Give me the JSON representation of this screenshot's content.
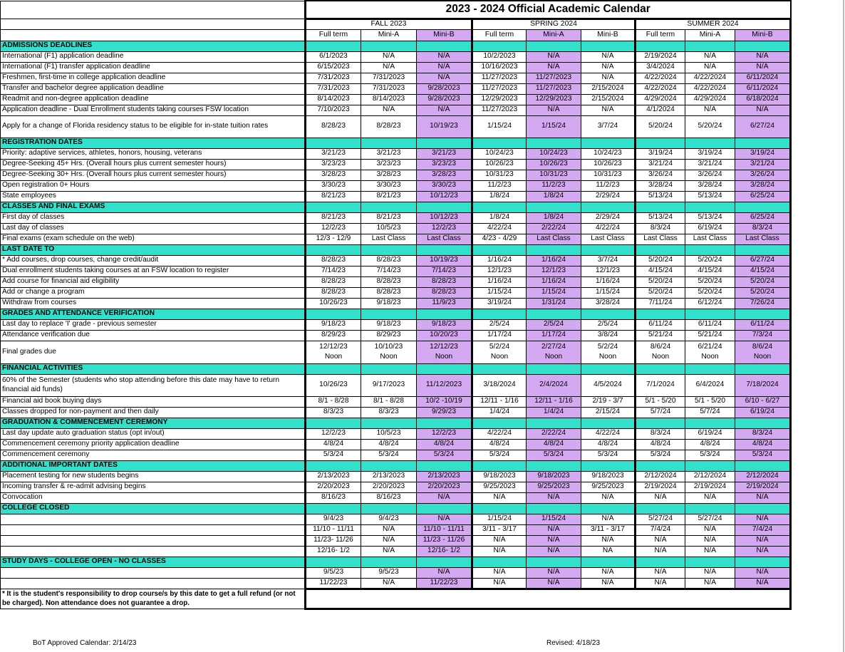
{
  "title": "2023 - 2024 Official Academic Calendar",
  "terms": [
    "FALL 2023",
    "SPRING 2024",
    "SUMMER 2024"
  ],
  "subheaders": [
    "Full term",
    "Mini-A",
    "Mini-B",
    "Full term",
    "Mini-A",
    "Mini-B",
    "Full term",
    "Mini-A",
    "Mini-B"
  ],
  "sections": [
    {
      "title": "ADMISSIONS DEADLINES",
      "rows": [
        {
          "label": "International (F1) application deadline",
          "values": [
            "6/1/2023",
            "N/A",
            "N/A",
            "10/2/2023",
            "N/A",
            "N/A",
            "2/19/2024",
            "N/A",
            "N/A"
          ]
        },
        {
          "label": "International (F1) transfer application deadline",
          "values": [
            "6/15/2023",
            "N/A",
            "N/A",
            "10/16/2023",
            "N/A",
            "N/A",
            "3/4/2024",
            "N/A",
            "N/A"
          ]
        },
        {
          "label": "Freshmen, first-time in college application deadline",
          "values": [
            "7/31/2023",
            "7/31/2023",
            "N/A",
            "11/27/2023",
            "11/27/2023",
            "N/A",
            "4/22/2024",
            "4/22/2024",
            "6/11/2024"
          ]
        },
        {
          "label": "Transfer and bachelor degree application deadline",
          "values": [
            "7/31/2023",
            "7/31/2023",
            "9/28/2023",
            "11/27/2023",
            "11/27/2023",
            "2/15/2024",
            "4/22/2024",
            "4/22/2024",
            "6/11/2024"
          ]
        },
        {
          "label": "Readmit and non-degree application deadline",
          "values": [
            "8/14/2023",
            "8/14/2023",
            "9/28/2023",
            "12/29/2023",
            "12/29/2023",
            "2/15/2024",
            "4/29/2024",
            "4/29/2024",
            "6/18/2024"
          ]
        },
        {
          "label": "Application deadline - Dual Enrollment students taking courses FSW location",
          "values": [
            "7/10/2023",
            "N/A",
            "N/A",
            "11/27/2023",
            "N/A",
            "N/A",
            "4/1/2024",
            "N/A",
            "N/A"
          ]
        },
        {
          "label": "Apply for a change of Florida residency status to be eligible for in-state tuition rates",
          "values": [
            "8/28/23",
            "8/28/23",
            "10/19/23",
            "1/15/24",
            "1/15/24",
            "3/7/24",
            "5/20/24",
            "5/20/24",
            "6/27/24"
          ],
          "tall": true
        }
      ]
    },
    {
      "title": "REGISTRATION DATES",
      "rows": [
        {
          "label": "Priority: adaptive services, athletes, honors, housing, veterans",
          "values": [
            "3/21/23",
            "3/21/23",
            "3/21/23",
            "10/24/23",
            "10/24/23",
            "10/24/23",
            "3/19/24",
            "3/19/24",
            "3/19/24"
          ]
        },
        {
          "label": "Degree-Seeking 45+ Hrs. (Overall hours plus current semester hours)",
          "values": [
            "3/23/23",
            "3/23/23",
            "3/23/23",
            "10/26/23",
            "10/26/23",
            "10/26/23",
            "3/21/24",
            "3/21/24",
            "3/21/24"
          ]
        },
        {
          "label": "Degree-Seeking 30+ Hrs. (Overall hours plus current semester hours)",
          "values": [
            "3/28/23",
            "3/28/23",
            "3/28/23",
            "10/31/23",
            "10/31/23",
            "10/31/23",
            "3/26/24",
            "3/26/24",
            "3/26/24"
          ]
        },
        {
          "label": "Open registration 0+ Hours",
          "values": [
            "3/30/23",
            "3/30/23",
            "3/30/23",
            "11/2/23",
            "11/2/23",
            "11/2/23",
            "3/28/24",
            "3/28/24",
            "3/28/24"
          ]
        },
        {
          "label": "State employees",
          "values": [
            "8/21/23",
            "8/21/23",
            "10/12/23",
            "1/8/24",
            "1/8/24",
            "2/29/24",
            "5/13/24",
            "5/13/24",
            "6/25/24"
          ]
        }
      ]
    },
    {
      "title": "CLASSES AND FINAL EXAMS",
      "rows": [
        {
          "label": "First day of classes",
          "values": [
            "8/21/23",
            "8/21/23",
            "10/12/23",
            "1/8/24",
            "1/8/24",
            "2/29/24",
            "5/13/24",
            "5/13/24",
            "6/25/24"
          ]
        },
        {
          "label": "Last day of classes",
          "values": [
            "12/2/23",
            "10/5/23",
            "12/2/23",
            "4/22/24",
            "2/22/24",
            "4/22/24",
            "8/3/24",
            "6/19/24",
            "8/3/24"
          ]
        },
        {
          "label": "Final exams (exam schedule on the web)",
          "values": [
            "12/3 - 12/9",
            "Last Class",
            "Last Class",
            "4/23 - 4/29",
            "Last Class",
            "Last Class",
            "Last Class",
            "Last Class",
            "Last Class"
          ]
        }
      ]
    },
    {
      "title": "LAST DATE TO",
      "rows": [
        {
          "label": "* Add courses, drop courses, change credit/audit",
          "values": [
            "8/28/23",
            "8/28/23",
            "10/19/23",
            "1/16/24",
            "1/16/24",
            "3/7/24",
            "5/20/24",
            "5/20/24",
            "6/27/24"
          ]
        },
        {
          "label": "Dual enrollment students taking courses at an FSW location to register",
          "values": [
            "7/14/23",
            "7/14/23",
            "7/14/23",
            "12/1/23",
            "12/1/23",
            "12/1/23",
            "4/15/24",
            "4/15/24",
            "4/15/24"
          ]
        },
        {
          "label": "Add course for financial aid eligibility",
          "values": [
            "8/28/23",
            "8/28/23",
            "8/28/23",
            "1/16/24",
            "1/16/24",
            "1/16/24",
            "5/20/24",
            "5/20/24",
            "5/20/24"
          ]
        },
        {
          "label": "Add or change a program",
          "values": [
            "8/28/23",
            "8/28/23",
            "8/28/23",
            "1/15/24",
            "1/15/24",
            "1/15/24",
            "5/20/24",
            "5/20/24",
            "5/20/24"
          ]
        },
        {
          "label": "Withdraw from courses",
          "values": [
            "10/26/23",
            "9/18/23",
            "11/9/23",
            "3/19/24",
            "1/31/24",
            "3/28/24",
            "7/11/24",
            "6/12/24",
            "7/26/24"
          ]
        }
      ]
    },
    {
      "title": "GRADES AND ATTENDANCE VERIFICATION",
      "rows": [
        {
          "label": "Last day to replace 'I' grade - previous semester",
          "values": [
            "9/18/23",
            "9/18/23",
            "9/18/23",
            "2/5/24",
            "2/5/24",
            "2/5/24",
            "6/11/24",
            "6/11/24",
            "6/11/24"
          ]
        },
        {
          "label": "Attendance verification due",
          "values": [
            "8/29/23",
            "8/29/23",
            "10/20/23",
            "1/17/24",
            "1/17/24",
            "3/8/24",
            "5/21/24",
            "5/21/24",
            "7/3/24"
          ]
        },
        {
          "label": "Final grades due",
          "values": [
            "12/12/23",
            "10/10/23",
            "12/12/23",
            "5/2/24",
            "2/27/24",
            "5/2/24",
            "8/6/24",
            "6/21/24",
            "8/6/24"
          ],
          "values2": [
            "Noon",
            "Noon",
            "Noon",
            "Noon",
            "Noon",
            "Noon",
            "Noon",
            "Noon",
            "Noon"
          ],
          "tall": true
        }
      ]
    },
    {
      "title": "FINANCIAL ACTIVITIES",
      "rows": [
        {
          "label": "60% of the Semester (students who stop attending before this date may have to return financial aid funds)",
          "values": [
            "10/26/23",
            "9/17/2023",
            "11/12/2023",
            "3/18/2024",
            "2/4/2024",
            "4/5/2024",
            "7/1/2024",
            "6/4/2024",
            "7/18/2024"
          ],
          "tall": true
        },
        {
          "label": "Financial aid book buying days",
          "values": [
            "8/1 - 8/28",
            "8/1 - 8/28",
            "10/2 -10/19",
            "12/11 - 1/16",
            "12/11 - 1/16",
            "2/19 - 3/7",
            "5/1 - 5/20",
            "5/1 - 5/20",
            "6/10 - 6/27"
          ]
        },
        {
          "label": "Classes dropped for non-payment and then daily",
          "values": [
            "8/3/23",
            "8/3/23",
            "9/29/23",
            "1/4/24",
            "1/4/24",
            "2/15/24",
            "5/7/24",
            "5/7/24",
            "6/19/24"
          ]
        }
      ]
    },
    {
      "title": "GRADUATION & COMMENCEMENT CEREMONY",
      "rows": [
        {
          "label": "Last day update auto graduation status (opt in/out)",
          "values": [
            "12/2/23",
            "10/5/23",
            "12/2/23",
            "4/22/24",
            "2/22/24",
            "4/22/24",
            "8/3/24",
            "6/19/24",
            "8/3/24"
          ]
        },
        {
          "label": "Commencement ceremony priority application deadline",
          "values": [
            "4/8/24",
            "4/8/24",
            "4/8/24",
            "4/8/24",
            "4/8/24",
            "4/8/24",
            "4/8/24",
            "4/8/24",
            "4/8/24"
          ]
        },
        {
          "label": "Commencement ceremony",
          "values": [
            "5/3/24",
            "5/3/24",
            "5/3/24",
            "5/3/24",
            "5/3/24",
            "5/3/24",
            "5/3/24",
            "5/3/24",
            "5/3/24"
          ]
        }
      ]
    },
    {
      "title": "ADDITIONAL IMPORTANT DATES",
      "rows": [
        {
          "label": "Placement testing for new students begins",
          "values": [
            "2/13/2023",
            "2/13/2023",
            "2/13/2023",
            "9/18/2023",
            "9/18/2023",
            "9/18/2023",
            "2/12/2024",
            "2/12/2024",
            "2/12/2024"
          ]
        },
        {
          "label": "Incoming transfer & re-admit advising begins",
          "values": [
            "2/20/2023",
            "2/20/2023",
            "2/20/2023",
            "9/25/2023",
            "9/25/2023",
            "9/25/2023",
            "2/19/2024",
            "2/19/2024",
            "2/19/2024"
          ]
        },
        {
          "label": "Convocation",
          "values": [
            "8/16/23",
            "8/16/23",
            "N/A",
            "N/A",
            "N/A",
            "N/A",
            "N/A",
            "N/A",
            "N/A"
          ]
        }
      ]
    },
    {
      "title": "COLLEGE CLOSED",
      "rows": [
        {
          "label": "",
          "values": [
            "9/4/23",
            "9/4/23",
            "N/A",
            "1/15/24",
            "1/15/24",
            "N/A",
            "5/27/24",
            "5/27/24",
            "N/A"
          ]
        },
        {
          "label": "",
          "values": [
            "11/10 - 11/11",
            "N/A",
            "11/10 - 11/11",
            "3/11 - 3/17",
            "N/A",
            "3/11 - 3/17",
            "7/4/24",
            "N/A",
            "7/4/24"
          ]
        },
        {
          "label": "",
          "values": [
            "11/23- 11/26",
            "N/A",
            "11/23 - 11/26",
            "N/A",
            "N/A",
            "N/A",
            "N/A",
            "N/A",
            "N/A"
          ]
        },
        {
          "label": "",
          "values": [
            "12/16- 1/2",
            "N/A",
            "12/16- 1/2",
            "N/A",
            "N/A",
            "NA",
            "N/A",
            "N/A",
            "N/A"
          ]
        }
      ]
    },
    {
      "title": "STUDY DAYS - COLLEGE OPEN - NO CLASSES",
      "rows": [
        {
          "label": "",
          "values": [
            "9/5/23",
            "9/5/23",
            "N/A",
            "N/A",
            "N/A",
            "N/A",
            "N/A",
            "N/A",
            "N/A"
          ]
        },
        {
          "label": "",
          "values": [
            "11/22/23",
            "N/A",
            "11/22/23",
            "N/A",
            "N/A",
            "N/A",
            "N/A",
            "N/A",
            "N/A"
          ]
        }
      ]
    }
  ],
  "footnote": "*  It is the student's responsibility to drop course/s by this date to get a full refund (or not be charged). Non attendance does not guarantee a drop.",
  "footer": {
    "approved": "BoT Approved Calendar: 2/14/23",
    "revised": "Revised: 4/18/23"
  },
  "colors": {
    "teal": "#33e0cc",
    "purple": "#d5a8f2"
  }
}
